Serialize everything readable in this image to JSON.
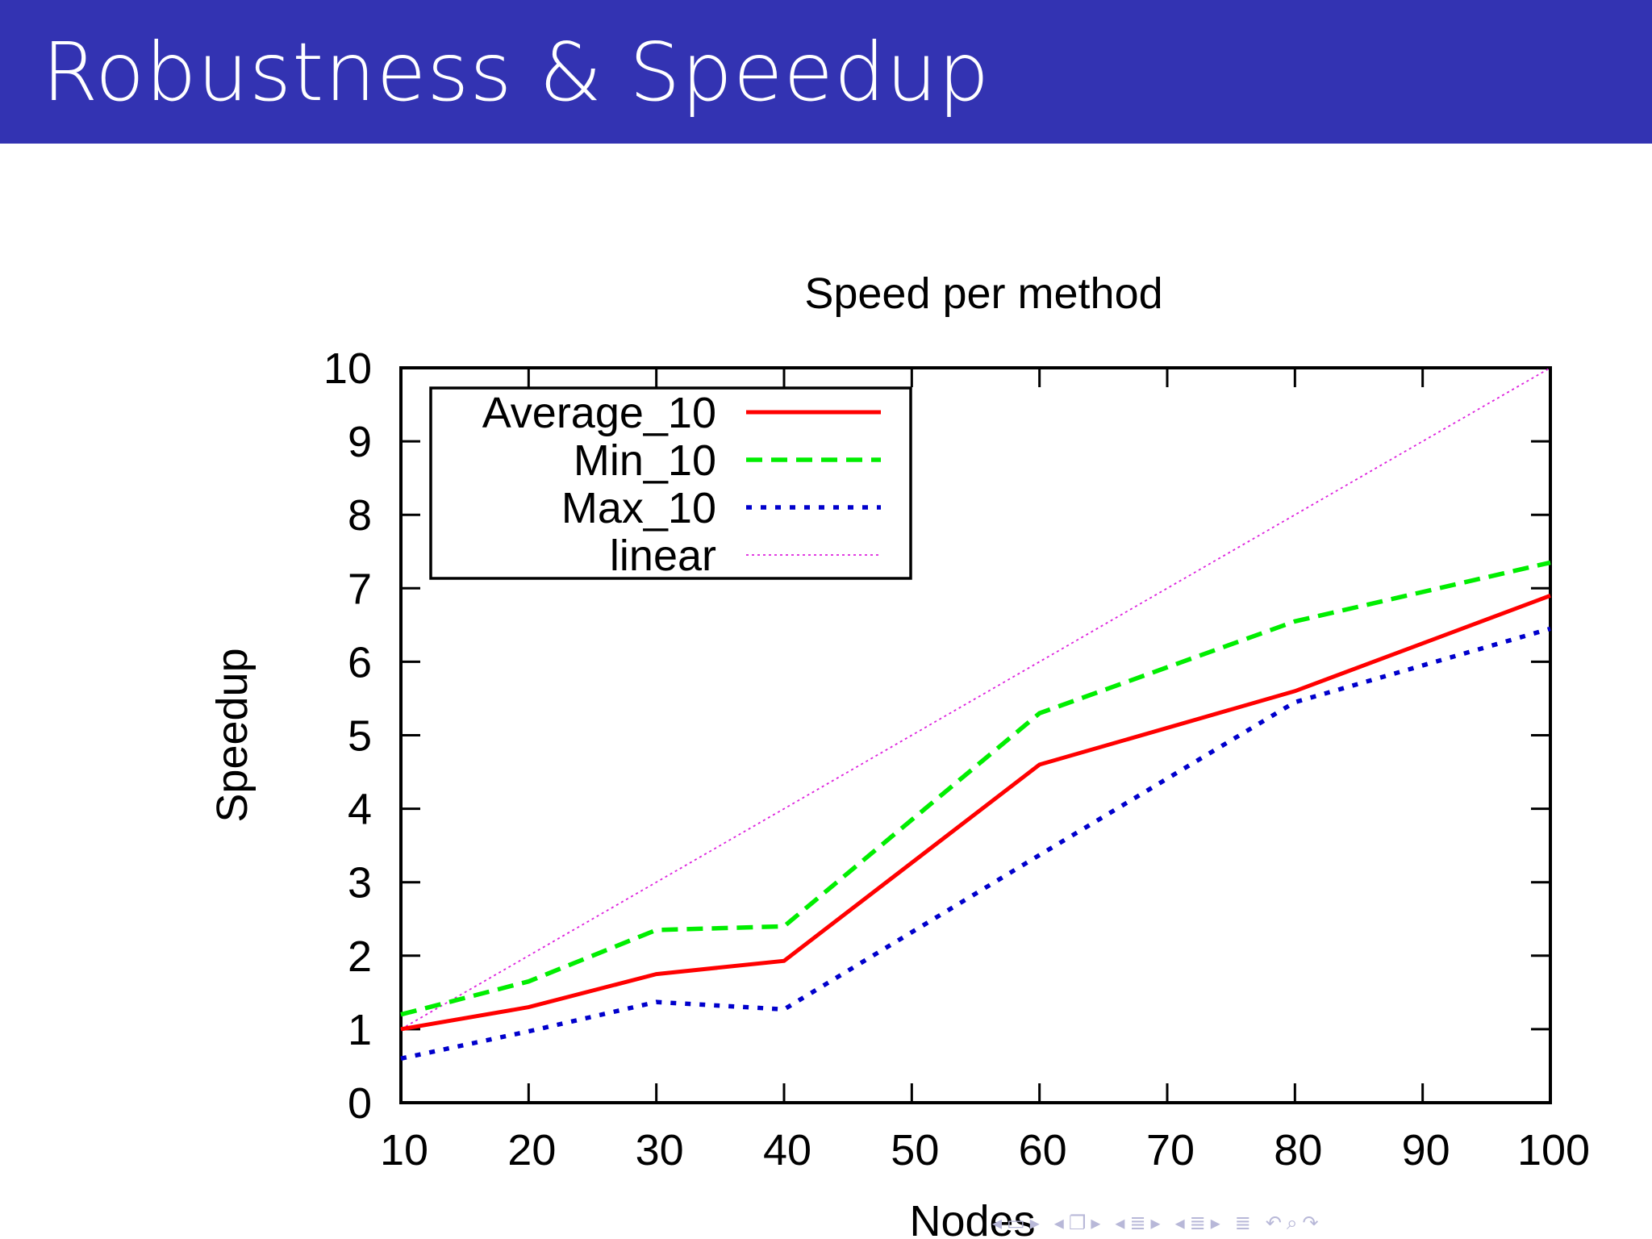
{
  "slide": {
    "title": "Robustness & Speedup"
  },
  "colors": {
    "header_bg": "#3333b2",
    "header_text": "#ffffff",
    "average": "#ff0000",
    "min": "#00ee00",
    "max": "#0000cc",
    "linear": "#dd22dd"
  },
  "chart_data": {
    "type": "line",
    "title": "Speed per method",
    "xlabel": "Nodes",
    "ylabel": "Speedup",
    "xlim": [
      10,
      100
    ],
    "ylim": [
      0,
      10
    ],
    "x_ticks": [
      10,
      20,
      30,
      40,
      50,
      60,
      70,
      80,
      90,
      100
    ],
    "y_ticks": [
      0,
      1,
      2,
      3,
      4,
      5,
      6,
      7,
      8,
      9,
      10
    ],
    "grid": false,
    "legend_position": "top-left",
    "x": [
      10,
      20,
      30,
      40,
      60,
      80,
      100
    ],
    "series": [
      {
        "name": "Average_10",
        "style": "solid",
        "color": "#ff0000",
        "values": [
          1.0,
          1.3,
          1.75,
          1.93,
          4.6,
          5.6,
          6.9
        ]
      },
      {
        "name": "Min_10",
        "style": "dashed",
        "color": "#00ee00",
        "values": [
          1.2,
          1.65,
          2.35,
          2.4,
          5.3,
          6.55,
          7.35
        ]
      },
      {
        "name": "Max_10",
        "style": "dotted",
        "color": "#0000cc",
        "values": [
          0.6,
          0.97,
          1.37,
          1.27,
          3.37,
          5.45,
          6.45
        ]
      },
      {
        "name": "linear",
        "style": "fine-dotted",
        "color": "#dd22dd",
        "x": [
          10,
          100
        ],
        "values": [
          1,
          10
        ]
      }
    ]
  },
  "navigation": {
    "icons": [
      "nav-left-arrow-icon",
      "slide-frame-icon",
      "nav-right-arrow-icon",
      "nav-left-arrow-icon",
      "frame-stack-icon",
      "nav-right-arrow-icon",
      "nav-left-arrow-icon",
      "subsection-icon",
      "nav-right-arrow-icon",
      "nav-left-arrow-icon",
      "section-icon",
      "nav-right-arrow-icon",
      "align-icon",
      "undo-icon",
      "search-icon",
      "redo-icon"
    ]
  }
}
